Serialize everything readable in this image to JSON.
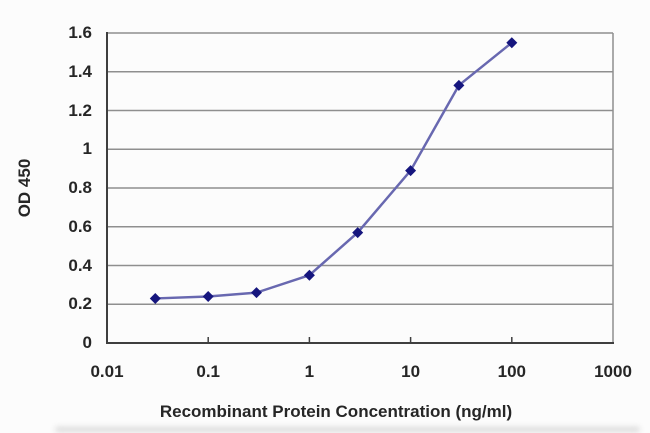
{
  "chart_data": {
    "type": "line",
    "title": "",
    "xlabel": "Recombinant Protein Concentration (ng/ml)",
    "ylabel": "OD 450",
    "x_scale": "log",
    "x": [
      0.03,
      0.1,
      0.3,
      1,
      3,
      10,
      30,
      100
    ],
    "y": [
      0.23,
      0.24,
      0.26,
      0.35,
      0.57,
      0.89,
      1.33,
      1.55
    ],
    "x_ticks": [
      0.01,
      0.1,
      1,
      10,
      100,
      1000
    ],
    "x_tick_labels": [
      "0.01",
      "0.1",
      "1",
      "10",
      "100",
      "1000"
    ],
    "y_ticks": [
      0,
      0.2,
      0.4,
      0.6,
      0.8,
      1,
      1.2,
      1.4,
      1.6
    ],
    "y_tick_labels": [
      "0",
      "0.2",
      "0.4",
      "0.6",
      "0.8",
      "1",
      "1.2",
      "1.4",
      "1.6"
    ],
    "xlim": [
      0.01,
      1000
    ],
    "ylim": [
      0,
      1.6
    ],
    "grid": "horizontal",
    "legend": "none",
    "marker_shape": "diamond",
    "colors": {
      "line": "#6868b0",
      "marker": "#16167e",
      "grid": "#8f8f8f",
      "axis": "#3f3f3f",
      "text": "#262626",
      "background": "#fcfcfc"
    }
  }
}
